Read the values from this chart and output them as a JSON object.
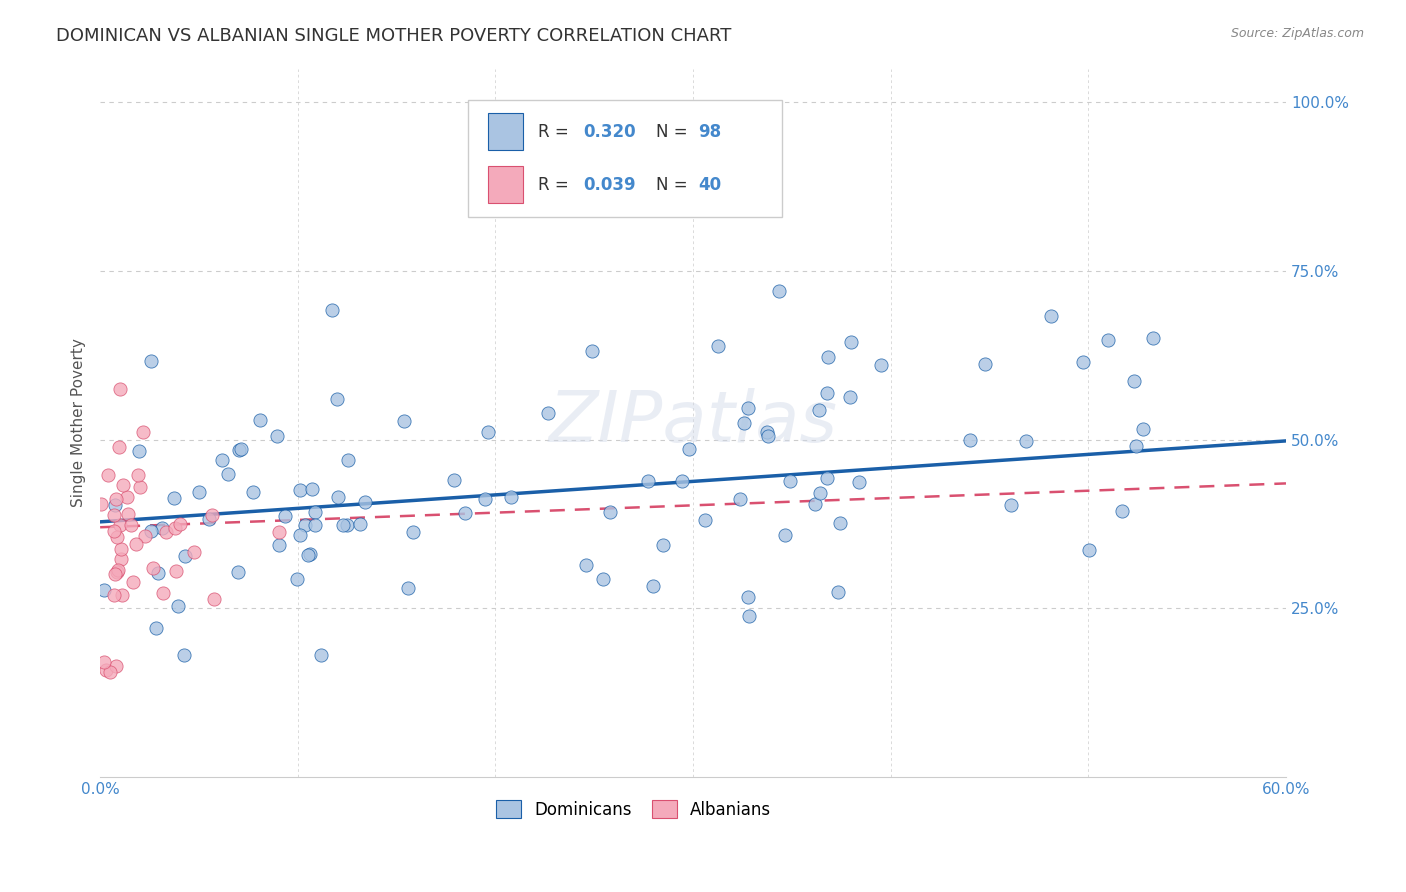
{
  "title": "DOMINICAN VS ALBANIAN SINGLE MOTHER POVERTY CORRELATION CHART",
  "source": "Source: ZipAtlas.com",
  "ylabel": "Single Mother Poverty",
  "xmin": 0.0,
  "xmax": 0.6,
  "ymin": 0.0,
  "ymax": 1.05,
  "yticks": [
    0.25,
    0.5,
    0.75,
    1.0
  ],
  "ytick_labels": [
    "25.0%",
    "50.0%",
    "75.0%",
    "100.0%"
  ],
  "xticks": [
    0.0,
    0.1,
    0.2,
    0.3,
    0.4,
    0.5,
    0.6
  ],
  "xtick_labels": [
    "0.0%",
    "",
    "",
    "",
    "",
    "",
    "60.0%"
  ],
  "dominican_R": 0.32,
  "dominican_N": 98,
  "albanian_R": 0.039,
  "albanian_N": 40,
  "dominican_color": "#aac4e2",
  "dominican_line_color": "#1a5fa8",
  "albanian_color": "#f4aabb",
  "albanian_line_color": "#d95070",
  "watermark": "ZIPatlas",
  "legend_label_1": "Dominicans",
  "legend_label_2": "Albanians",
  "background_color": "#ffffff",
  "grid_color": "#cccccc",
  "title_color": "#333333",
  "axis_label_color": "#4488cc",
  "title_fontsize": 13,
  "axis_fontsize": 11,
  "dom_line_start_y": 0.378,
  "dom_line_end_y": 0.498,
  "alb_line_start_y": 0.37,
  "alb_line_end_y": 0.435
}
